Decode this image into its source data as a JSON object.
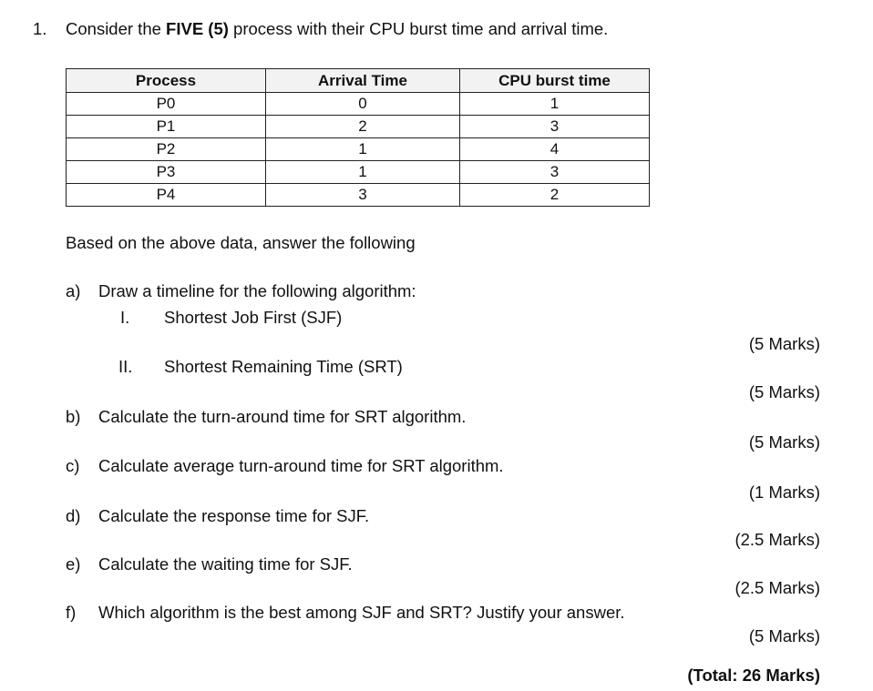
{
  "question": {
    "number": "1.",
    "intro_pre": "Consider the ",
    "intro_bold": "FIVE (5)",
    "intro_post": " process with their CPU burst time and arrival time."
  },
  "table": {
    "headers": [
      "Process",
      "Arrival Time",
      "CPU burst time"
    ],
    "rows": [
      [
        "P0",
        "0",
        "1"
      ],
      [
        "P1",
        "2",
        "3"
      ],
      [
        "P2",
        "1",
        "4"
      ],
      [
        "P3",
        "1",
        "3"
      ],
      [
        "P4",
        "3",
        "2"
      ]
    ]
  },
  "lead_in": "Based on the above data, answer the following",
  "parts": {
    "a": {
      "label": "a)",
      "text": "Draw a timeline for the following algorithm:"
    },
    "a1": {
      "label": "I.",
      "text": "Shortest Job First (SJF)",
      "marks": "(5 Marks)"
    },
    "a2": {
      "label": "II.",
      "text": "Shortest Remaining Time (SRT)",
      "marks": "(5 Marks)"
    },
    "b": {
      "label": "b)",
      "text": "Calculate the turn-around time for SRT algorithm.",
      "marks": "(5 Marks)"
    },
    "c": {
      "label": "c)",
      "text": "Calculate average turn-around time for SRT algorithm.",
      "marks": "(1 Marks)"
    },
    "d": {
      "label": "d)",
      "text": "Calculate the response time for SJF.",
      "marks": "(2.5 Marks)"
    },
    "e": {
      "label": "e)",
      "text": "Calculate the waiting time for SJF.",
      "marks": "(2.5 Marks)"
    },
    "f": {
      "label": "f)",
      "text": "Which algorithm is the best among SJF and SRT? Justify your answer.",
      "marks": "(5 Marks)"
    }
  },
  "total": "(Total: 26 Marks)"
}
